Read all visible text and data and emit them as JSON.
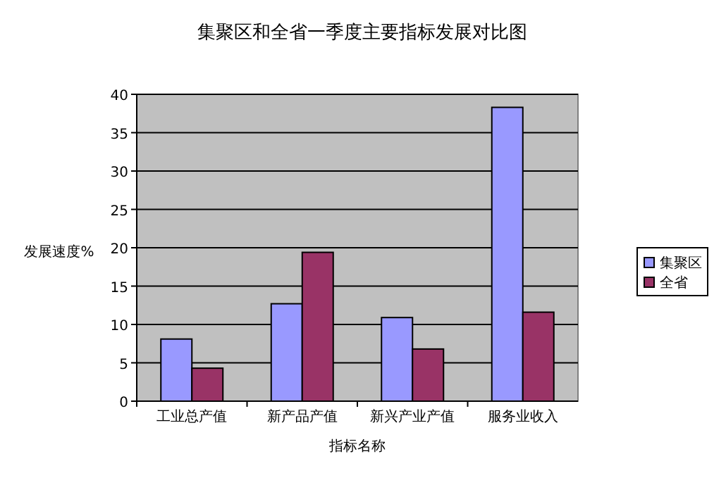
{
  "chart_data": {
    "type": "bar",
    "title": "集聚区和全省一季度主要指标发展对比图",
    "xlabel": "指标名称",
    "ylabel": "发展速度%",
    "categories": [
      "工业总产值",
      "新产品产值",
      "新兴产业产值",
      "服务业收入"
    ],
    "series": [
      {
        "name": "集聚区",
        "color": "#9999ff",
        "values": [
          8.1,
          12.7,
          10.9,
          38.3
        ]
      },
      {
        "name": "全省",
        "color": "#993366",
        "values": [
          4.3,
          19.4,
          6.8,
          11.6
        ]
      }
    ],
    "ylim": [
      0,
      40
    ],
    "yticks": [
      0,
      5,
      10,
      15,
      20,
      25,
      30,
      35,
      40
    ],
    "grid": "y",
    "legend": "right"
  }
}
